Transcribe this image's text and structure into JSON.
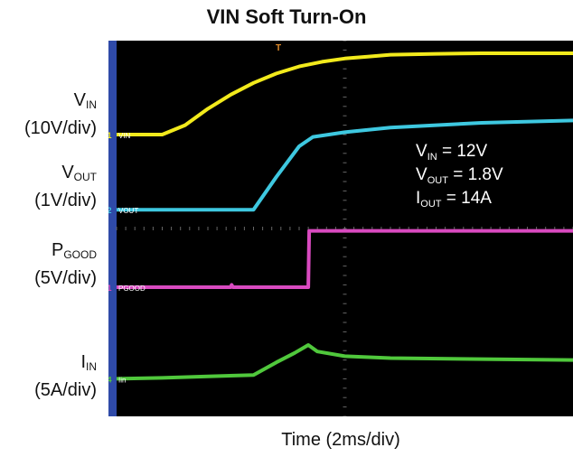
{
  "chart_data": {
    "type": "line",
    "title": "VIN Soft Turn-On",
    "xlabel": "Time (2ms/div)",
    "x_divisions": 10,
    "y_divisions": 8,
    "grid": false,
    "channels": [
      {
        "name": "V",
        "sub": "IN",
        "scale": "(10V/div)",
        "marker": "1",
        "tag": "VIN",
        "color": "#f2ea1c",
        "points": [
          [
            0,
            6.0
          ],
          [
            0.5,
            6.0
          ],
          [
            1.0,
            6.0
          ],
          [
            1.5,
            6.2
          ],
          [
            2.0,
            6.55
          ],
          [
            2.5,
            6.85
          ],
          [
            3.0,
            7.1
          ],
          [
            3.5,
            7.3
          ],
          [
            4.0,
            7.45
          ],
          [
            4.5,
            7.55
          ],
          [
            5.0,
            7.62
          ],
          [
            5.5,
            7.66
          ],
          [
            6.0,
            7.7
          ],
          [
            7.0,
            7.72
          ],
          [
            8.0,
            7.73
          ],
          [
            10.0,
            7.73
          ]
        ]
      },
      {
        "name": "V",
        "sub": "OUT",
        "scale": "(1V/div)",
        "marker": "2",
        "tag": "VOUT",
        "color": "#3ec8e0",
        "points": [
          [
            0,
            4.4
          ],
          [
            2.5,
            4.4
          ],
          [
            3.0,
            4.4
          ],
          [
            3.5,
            5.1
          ],
          [
            4.0,
            5.75
          ],
          [
            4.3,
            5.95
          ],
          [
            5.0,
            6.05
          ],
          [
            6.0,
            6.15
          ],
          [
            7.0,
            6.2
          ],
          [
            8.0,
            6.25
          ],
          [
            10.0,
            6.3
          ]
        ]
      },
      {
        "name": "P",
        "sub": "GOOD",
        "scale": "(5V/div)",
        "marker": "1",
        "tag": "PGOOD",
        "color": "#d94ac0",
        "points": [
          [
            0,
            2.75
          ],
          [
            2.5,
            2.75
          ],
          [
            2.52,
            2.8
          ],
          [
            2.55,
            2.75
          ],
          [
            4.2,
            2.75
          ],
          [
            4.22,
            3.95
          ],
          [
            10.0,
            3.95
          ]
        ]
      },
      {
        "name": "I",
        "sub": "IN",
        "scale": "(5A/div)",
        "marker": "4",
        "tag": "Iin",
        "color": "#50c83c",
        "points": [
          [
            0,
            0.8
          ],
          [
            1.0,
            0.82
          ],
          [
            2.0,
            0.85
          ],
          [
            3.0,
            0.88
          ],
          [
            3.5,
            1.15
          ],
          [
            3.9,
            1.35
          ],
          [
            4.2,
            1.52
          ],
          [
            4.4,
            1.38
          ],
          [
            5.0,
            1.28
          ],
          [
            6.0,
            1.24
          ],
          [
            8.0,
            1.22
          ],
          [
            10.0,
            1.2
          ]
        ]
      }
    ],
    "annotation": [
      {
        "name": "V",
        "sub": "IN",
        "text": " = 12V"
      },
      {
        "name": "V",
        "sub": "OUT",
        "text": " = 1.8V"
      },
      {
        "name": "I",
        "sub": "OUT",
        "text": " = 14A"
      }
    ],
    "trigger_marker": "T"
  }
}
